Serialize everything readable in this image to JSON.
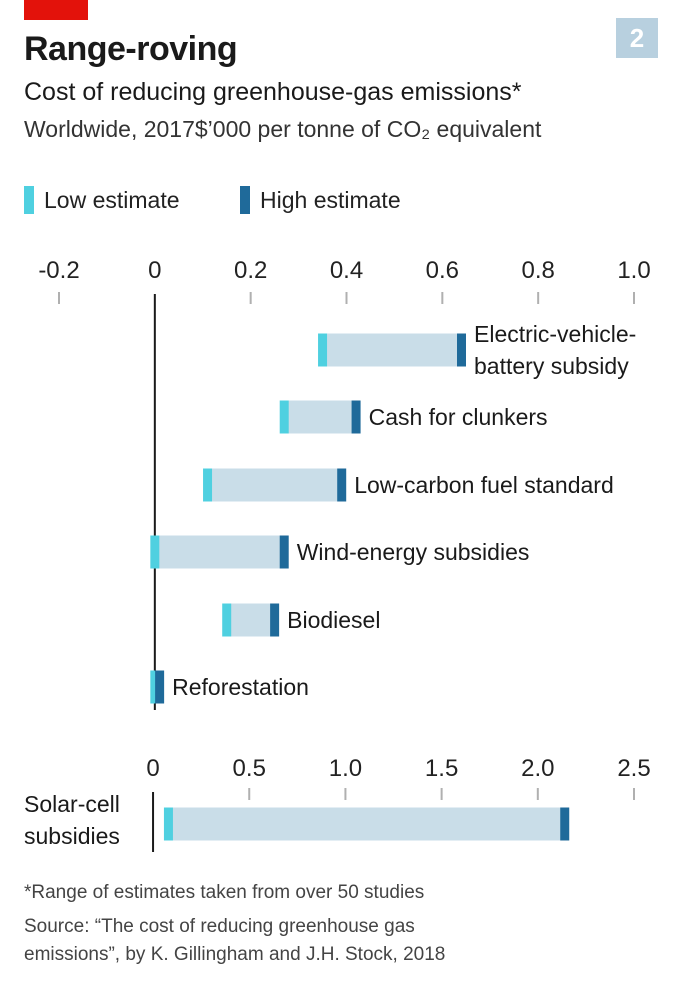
{
  "header": {
    "title": "Range-roving",
    "subtitle": "Cost of reducing greenhouse-gas emissions*",
    "unit_line": "Worldwide, 2017$’000 per tonne of CO₂ equivalent",
    "badge": "2"
  },
  "legend": {
    "low": "Low estimate",
    "high": "High estimate"
  },
  "colors": {
    "low": "#4fd0e0",
    "high": "#1f6a9a",
    "range": "#c9dde8",
    "brand": "#e3120b"
  },
  "chart_data": [
    {
      "type": "bar",
      "subtype": "range",
      "xlim": [
        -0.2,
        1.0
      ],
      "ticks": [
        "-0.2",
        "0",
        "0.2",
        "0.4",
        "0.6",
        "0.8",
        "1.0"
      ],
      "tick_values": [
        -0.2,
        0,
        0.2,
        0.4,
        0.6,
        0.8,
        1.0
      ],
      "categories": [
        "Electric-vehicle-battery subsidy",
        "Cash for clunkers",
        "Low-carbon fuel standard",
        "Wind-energy subsidies",
        "Biodiesel",
        "Reforestation"
      ],
      "label_lines": [
        [
          "Electric-vehicle-",
          "battery subsidy"
        ],
        [
          "Cash for clunkers"
        ],
        [
          "Low-carbon fuel standard"
        ],
        [
          "Wind-energy subsidies"
        ],
        [
          "Biodiesel"
        ],
        [
          "Reforestation"
        ]
      ],
      "series": [
        {
          "name": "Low estimate",
          "values": [
            0.35,
            0.27,
            0.11,
            0.0,
            0.15,
            0.0
          ]
        },
        {
          "name": "High estimate",
          "values": [
            0.64,
            0.42,
            0.39,
            0.27,
            0.25,
            0.01
          ]
        }
      ]
    },
    {
      "type": "bar",
      "subtype": "range",
      "xlim": [
        -0.65,
        2.5
      ],
      "ticks": [
        "0",
        "0.5",
        "1.0",
        "1.5",
        "2.0",
        "2.5"
      ],
      "tick_values": [
        0,
        0.5,
        1.0,
        1.5,
        2.0,
        2.5
      ],
      "categories": [
        "Solar-cell subsidies"
      ],
      "label_lines": [
        [
          "Solar-cell",
          "subsidies"
        ]
      ],
      "series": [
        {
          "name": "Low estimate",
          "values": [
            0.08
          ]
        },
        {
          "name": "High estimate",
          "values": [
            2.14
          ]
        }
      ]
    }
  ],
  "footnotes": {
    "note": "*Range of estimates taken from over 50 studies",
    "source_line1": "Source: “The cost of reducing greenhouse gas",
    "source_line2": "emissions”, by K. Gillingham and J.H. Stock, 2018"
  }
}
